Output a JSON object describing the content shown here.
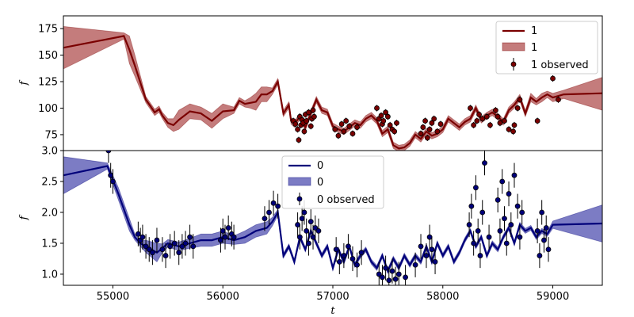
{
  "chart_data": [
    {
      "type": "line",
      "panel": "top",
      "ylabel": "f",
      "xlabel": "",
      "xlim": [
        54550,
        59450
      ],
      "ylim": [
        60,
        187
      ],
      "yticks": [
        75,
        100,
        125,
        150,
        175
      ],
      "legend": {
        "position": "top-right",
        "entries": [
          "1",
          "1",
          "1 observed"
        ]
      },
      "colors": {
        "line": "#7a0000",
        "band": "#b05050",
        "point": "#7a0000"
      },
      "mean": {
        "x": [
          54550,
          55100,
          55150,
          55200,
          55300,
          55380,
          55420,
          55450,
          55500,
          55550,
          55600,
          55700,
          55800,
          55900,
          56000,
          56100,
          56150,
          56200,
          56250,
          56300,
          56350,
          56400,
          56450,
          56500,
          56550,
          56600,
          56620,
          56650,
          56700,
          56750,
          56800,
          56850,
          56900,
          56950,
          57000,
          57050,
          57100,
          57150,
          57200,
          57250,
          57300,
          57350,
          57400,
          57450,
          57500,
          57550,
          57600,
          57650,
          57700,
          57750,
          57800,
          57850,
          57900,
          57950,
          58000,
          58050,
          58100,
          58150,
          58200,
          58250,
          58300,
          58350,
          58400,
          58450,
          58500,
          58550,
          58600,
          58650,
          58700,
          58750,
          58800,
          58850,
          58900,
          58950,
          59000,
          59100,
          59450
        ],
        "y": [
          157,
          168,
          155,
          140,
          108,
          96,
          99,
          93,
          86,
          84,
          89,
          97,
          95,
          88,
          97,
          98,
          107,
          104,
          105,
          106,
          113,
          113,
          116,
          125,
          95,
          103,
          88,
          85,
          92,
          82,
          95,
          108,
          98,
          96,
          83,
          80,
          78,
          82,
          86,
          84,
          90,
          93,
          88,
          76,
          80,
          65,
          62,
          63,
          67,
          75,
          71,
          78,
          74,
          76,
          80,
          90,
          86,
          82,
          87,
          90,
          100,
          89,
          93,
          96,
          92,
          87,
          98,
          103,
          110,
          95,
          110,
          106,
          110,
          113,
          110,
          113,
          114
        ],
        "lower": [
          137,
          165,
          142,
          130,
          105,
          93,
          96,
          90,
          82,
          78,
          80,
          90,
          89,
          81,
          90,
          95,
          104,
          101,
          100,
          98,
          106,
          106,
          113,
          122,
          92,
          100,
          85,
          82,
          89,
          79,
          92,
          105,
          95,
          93,
          80,
          77,
          75,
          79,
          83,
          81,
          87,
          90,
          85,
          73,
          77,
          62,
          59,
          60,
          64,
          72,
          68,
          75,
          71,
          73,
          77,
          87,
          83,
          79,
          84,
          87,
          97,
          86,
          90,
          93,
          89,
          84,
          95,
          100,
          107,
          92,
          106,
          103,
          106,
          110,
          106,
          109,
          98
        ],
        "upper": [
          177,
          171,
          168,
          150,
          111,
          99,
          102,
          96,
          90,
          90,
          98,
          104,
          101,
          95,
          104,
          101,
          110,
          107,
          110,
          114,
          120,
          120,
          119,
          128,
          98,
          106,
          91,
          88,
          95,
          85,
          98,
          111,
          101,
          99,
          86,
          83,
          81,
          85,
          89,
          87,
          93,
          96,
          91,
          79,
          83,
          68,
          65,
          66,
          70,
          78,
          74,
          81,
          77,
          79,
          83,
          93,
          89,
          85,
          90,
          93,
          103,
          92,
          96,
          99,
          95,
          90,
          101,
          106,
          113,
          98,
          114,
          109,
          114,
          116,
          114,
          117,
          129
        ]
      },
      "observed": {
        "x": [
          56640,
          56660,
          56680,
          56690,
          56700,
          56710,
          56720,
          56730,
          56740,
          56750,
          56760,
          56780,
          56800,
          56810,
          56820,
          56830,
          57020,
          57050,
          57080,
          57100,
          57120,
          57150,
          57180,
          57220,
          57400,
          57420,
          57440,
          57450,
          57460,
          57480,
          57500,
          57520,
          57540,
          57560,
          57580,
          57800,
          57820,
          57840,
          57860,
          57880,
          57900,
          57920,
          57950,
          57980,
          58250,
          58280,
          58310,
          58330,
          58360,
          58400,
          58430,
          58480,
          58500,
          58520,
          58560,
          58600,
          58640,
          58650,
          58680,
          58700,
          58860,
          59000,
          59050
        ],
        "y": [
          88,
          85,
          80,
          70,
          92,
          84,
          89,
          86,
          78,
          94,
          88,
          96,
          83,
          90,
          98,
          92,
          80,
          74,
          85,
          78,
          88,
          83,
          76,
          82,
          100,
          90,
          93,
          85,
          88,
          96,
          92,
          84,
          80,
          78,
          86,
          76,
          82,
          88,
          72,
          80,
          86,
          90,
          78,
          85,
          100,
          84,
          88,
          94,
          90,
          92,
          84,
          98,
          92,
          86,
          88,
          80,
          78,
          84,
          100,
          108,
          88,
          128,
          108
        ],
        "yerr": 3
      }
    },
    {
      "type": "line",
      "panel": "bottom",
      "ylabel": "f",
      "xlabel": "t",
      "xlim": [
        54550,
        59450
      ],
      "ylim": [
        0.82,
        3.0
      ],
      "yticks": [
        1.0,
        1.5,
        2.0,
        2.5,
        3.0
      ],
      "xticks": [
        55000,
        56000,
        57000,
        58000,
        59000
      ],
      "legend": {
        "position": "top-center",
        "entries": [
          "0",
          "0",
          "0 observed"
        ]
      },
      "colors": {
        "line": "#00007a",
        "band": "#5050b0",
        "point": "#00007a"
      },
      "mean": {
        "x": [
          54550,
          54950,
          55050,
          55150,
          55200,
          55250,
          55300,
          55400,
          55450,
          55500,
          55600,
          55700,
          55800,
          55900,
          56000,
          56100,
          56200,
          56300,
          56400,
          56450,
          56500,
          56550,
          56600,
          56650,
          56700,
          56750,
          56800,
          56850,
          56900,
          56950,
          57000,
          57050,
          57100,
          57150,
          57200,
          57250,
          57300,
          57350,
          57400,
          57450,
          57500,
          57550,
          57600,
          57650,
          57700,
          57750,
          57800,
          57850,
          57900,
          57950,
          58000,
          58050,
          58100,
          58150,
          58200,
          58250,
          58300,
          58350,
          58400,
          58450,
          58500,
          58550,
          58600,
          58650,
          58700,
          58750,
          58800,
          58850,
          58900,
          58950,
          59000,
          59450
        ],
        "y": [
          2.6,
          2.75,
          2.3,
          1.8,
          1.6,
          1.5,
          1.45,
          1.35,
          1.42,
          1.5,
          1.45,
          1.5,
          1.55,
          1.55,
          1.6,
          1.55,
          1.6,
          1.7,
          1.75,
          1.85,
          2.0,
          1.3,
          1.45,
          1.2,
          1.6,
          1.4,
          1.7,
          1.5,
          1.3,
          1.45,
          1.1,
          1.4,
          1.2,
          1.45,
          1.15,
          1.3,
          1.4,
          1.2,
          1.1,
          1.3,
          1.05,
          1.25,
          1.1,
          1.3,
          1.15,
          1.3,
          1.2,
          1.45,
          1.2,
          1.5,
          1.3,
          1.45,
          1.2,
          1.35,
          1.55,
          1.7,
          1.45,
          1.6,
          1.3,
          1.5,
          1.4,
          1.6,
          1.75,
          1.5,
          1.8,
          1.7,
          1.75,
          1.6,
          1.7,
          1.65,
          1.8,
          1.82
        ],
        "lower": [
          2.3,
          2.7,
          2.2,
          1.7,
          1.55,
          1.45,
          1.35,
          1.2,
          1.35,
          1.44,
          1.38,
          1.42,
          1.45,
          1.45,
          1.5,
          1.48,
          1.5,
          1.6,
          1.65,
          1.78,
          1.95,
          1.26,
          1.41,
          1.16,
          1.56,
          1.36,
          1.66,
          1.46,
          1.26,
          1.41,
          1.06,
          1.36,
          1.16,
          1.41,
          1.11,
          1.26,
          1.36,
          1.16,
          1.06,
          1.26,
          1.01,
          1.21,
          1.06,
          1.26,
          1.11,
          1.26,
          1.16,
          1.41,
          1.16,
          1.46,
          1.26,
          1.41,
          1.16,
          1.31,
          1.51,
          1.66,
          1.41,
          1.56,
          1.26,
          1.46,
          1.36,
          1.56,
          1.71,
          1.46,
          1.76,
          1.66,
          1.71,
          1.56,
          1.66,
          1.61,
          1.74,
          1.52
        ],
        "upper": [
          2.9,
          2.8,
          2.4,
          1.9,
          1.65,
          1.55,
          1.55,
          1.5,
          1.49,
          1.56,
          1.52,
          1.58,
          1.65,
          1.65,
          1.7,
          1.62,
          1.7,
          1.8,
          1.85,
          1.92,
          2.05,
          1.34,
          1.49,
          1.24,
          1.64,
          1.44,
          1.74,
          1.54,
          1.34,
          1.49,
          1.14,
          1.44,
          1.24,
          1.49,
          1.19,
          1.34,
          1.44,
          1.24,
          1.14,
          1.34,
          1.09,
          1.29,
          1.14,
          1.34,
          1.19,
          1.34,
          1.24,
          1.49,
          1.24,
          1.54,
          1.34,
          1.49,
          1.24,
          1.39,
          1.59,
          1.74,
          1.49,
          1.64,
          1.34,
          1.54,
          1.44,
          1.64,
          1.79,
          1.54,
          1.84,
          1.74,
          1.79,
          1.64,
          1.74,
          1.69,
          1.86,
          2.12
        ]
      },
      "observed": {
        "x": [
          54960,
          54980,
          55000,
          55230,
          55250,
          55270,
          55300,
          55330,
          55360,
          55400,
          55450,
          55480,
          55520,
          55560,
          55600,
          55630,
          55660,
          55700,
          55730,
          55980,
          56000,
          56020,
          56050,
          56080,
          56100,
          56380,
          56420,
          56460,
          56500,
          56680,
          56700,
          56720,
          56740,
          56760,
          56780,
          56800,
          56820,
          56840,
          56870,
          57030,
          57060,
          57100,
          57140,
          57180,
          57220,
          57260,
          57420,
          57450,
          57480,
          57510,
          57540,
          57570,
          57600,
          57660,
          57750,
          57800,
          57850,
          57880,
          57900,
          57930,
          58240,
          58260,
          58280,
          58300,
          58320,
          58340,
          58360,
          58380,
          58420,
          58500,
          58520,
          58540,
          58560,
          58580,
          58600,
          58620,
          58650,
          58680,
          58700,
          58720,
          58860,
          58880,
          58900,
          58920,
          58940,
          58960
        ],
        "y": [
          3.0,
          2.6,
          2.5,
          1.65,
          1.55,
          1.6,
          1.45,
          1.4,
          1.35,
          1.55,
          1.4,
          1.3,
          1.45,
          1.5,
          1.35,
          1.45,
          1.5,
          1.6,
          1.45,
          1.55,
          1.7,
          1.6,
          1.75,
          1.65,
          1.6,
          1.9,
          2.0,
          2.15,
          2.1,
          1.8,
          1.6,
          1.9,
          2.0,
          1.7,
          1.5,
          1.85,
          1.6,
          1.75,
          1.7,
          1.4,
          1.2,
          1.3,
          1.45,
          1.25,
          1.15,
          1.35,
          1.0,
          0.95,
          1.1,
          0.9,
          1.05,
          0.92,
          1.0,
          0.95,
          1.15,
          1.45,
          1.3,
          1.6,
          1.4,
          1.2,
          1.8,
          2.1,
          1.5,
          2.4,
          1.7,
          1.3,
          2.0,
          2.8,
          1.6,
          2.2,
          1.7,
          2.5,
          1.9,
          1.5,
          2.3,
          1.8,
          2.6,
          2.1,
          1.6,
          2.0,
          1.7,
          1.3,
          2.0,
          1.55,
          1.75,
          1.4
        ],
        "yerr": 0.2
      }
    }
  ]
}
